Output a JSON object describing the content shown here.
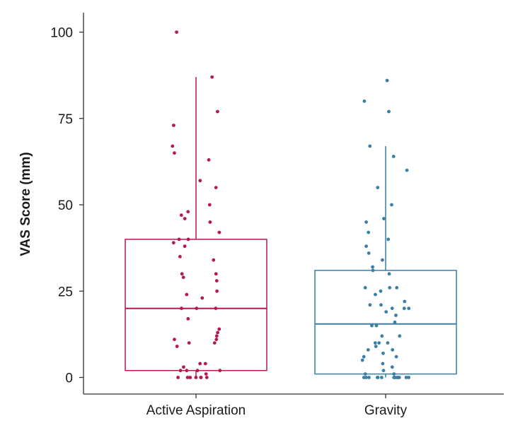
{
  "chart_data": {
    "type": "box",
    "title": "",
    "xlabel": "",
    "ylabel": "VAS Score (mm)",
    "ylim": [
      -5,
      105
    ],
    "yticks": [
      0,
      25,
      50,
      75,
      100
    ],
    "grid": false,
    "categories": [
      "Active Aspiration",
      "Gravity"
    ],
    "series": [
      {
        "category": "Active Aspiration",
        "color": "#b5194f",
        "box": {
          "whisker_low": 0,
          "q1": 2,
          "median": 20,
          "q3": 40,
          "whisker_high": 87
        },
        "points": [
          100,
          87,
          77,
          73,
          67,
          65,
          63,
          57,
          55,
          50,
          48,
          47,
          46,
          45,
          42,
          40,
          40,
          39,
          38,
          35,
          34,
          30,
          30,
          29,
          28,
          25,
          24,
          23,
          20,
          20,
          20,
          17,
          14,
          13,
          12,
          11,
          11,
          10,
          10,
          9,
          4,
          4,
          3,
          2,
          2,
          2,
          2,
          1,
          0,
          0,
          0,
          0,
          0,
          0,
          0
        ]
      },
      {
        "category": "Gravity",
        "color": "#3a7fa5",
        "box": {
          "whisker_low": 0,
          "q1": 1,
          "median": 15.5,
          "q3": 31,
          "whisker_high": 67
        },
        "points": [
          86,
          80,
          77,
          67,
          64,
          60,
          55,
          50,
          46,
          45,
          42,
          40,
          38,
          36,
          34,
          32,
          31,
          30,
          26,
          26,
          26,
          25,
          24,
          22,
          21,
          21,
          20,
          20,
          20,
          19,
          18,
          16,
          15,
          15,
          12,
          12,
          10,
          10,
          10,
          9,
          8,
          8,
          7,
          6,
          6,
          5,
          4,
          3,
          2,
          1,
          1,
          0,
          0,
          0,
          0,
          0,
          0,
          0,
          0,
          0,
          0,
          0,
          0,
          0
        ]
      }
    ]
  }
}
